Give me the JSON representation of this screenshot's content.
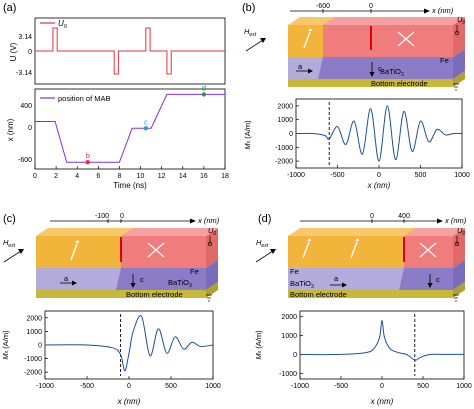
{
  "panels": {
    "a": {
      "label": "(a)",
      "top": {
        "legend": "U",
        "legend_sub": "0",
        "ylabel": "U (V)",
        "yticks": [
          "3.14",
          "0",
          "-3.14"
        ],
        "color": "#e53040"
      },
      "bottom": {
        "legend": "position of MAB",
        "ylabel": "x (nm)",
        "yticks": [
          "400",
          "0",
          "-600"
        ],
        "xlabel": "Time (ns)",
        "xticks": [
          "0",
          "2",
          "4",
          "6",
          "8",
          "10",
          "12",
          "14",
          "16",
          "18"
        ],
        "color": "#8a2be2",
        "markers": [
          {
            "label": "b",
            "color": "#e53040"
          },
          {
            "label": "c",
            "color": "#1fa3d8"
          },
          {
            "label": "d",
            "color": "#2e9e3a"
          }
        ]
      }
    },
    "b": {
      "label": "(b)",
      "axis_label": "x (nm)",
      "axis_ticks": [
        "-600",
        "0"
      ],
      "hext": "H",
      "hext_sub": "ext",
      "u0": "U",
      "u0_sub": "0",
      "fe": "Fe",
      "bto": "BaTiO",
      "bto_sub": "3",
      "electrode": "Bottom electrode",
      "a": "a",
      "c": "c",
      "ylabel": "M",
      "ylabel_sub": "x",
      "yunit": "(A/m)",
      "yticks": [
        "2000",
        "1000",
        "0",
        "-1000",
        "-2000"
      ],
      "xticks": [
        "-1000",
        "-500",
        "0",
        "500",
        "1000"
      ],
      "xlabel": "x (nm)"
    },
    "c": {
      "label": "(c)",
      "axis_label": "x (nm)",
      "axis_ticks": [
        "-100",
        "0"
      ],
      "hext": "H",
      "hext_sub": "ext",
      "u0": "U",
      "u0_sub": "0",
      "fe": "Fe",
      "bto": "BaTiO",
      "bto_sub": "3",
      "electrode": "Bottom electrode",
      "a": "a",
      "c": "c",
      "ylabel": "M",
      "ylabel_sub": "x",
      "yunit": "(A/m)",
      "yticks": [
        "2000",
        "1000",
        "0",
        "-1000",
        "-2000"
      ],
      "xticks": [
        "-1000",
        "-500",
        "0",
        "500",
        "1000"
      ],
      "xlabel": "x (nm)"
    },
    "d": {
      "label": "(d)",
      "axis_label": "x (nm)",
      "axis_ticks": [
        "0",
        "400"
      ],
      "hext": "H",
      "hext_sub": "ext",
      "u0": "U",
      "u0_sub": "0",
      "fe": "Fe",
      "bto": "BaTiO",
      "bto_sub": "3",
      "electrode": "Bottom electrode",
      "a": "a",
      "c": "c",
      "ylabel": "M",
      "ylabel_sub": "x",
      "yunit": "(A/m)",
      "yticks": [
        "2000",
        "1000",
        "0",
        "-1000"
      ],
      "xticks": [
        "-1000",
        "-500",
        "0",
        "500",
        "1000"
      ],
      "xlabel": "x (nm)"
    }
  },
  "colors": {
    "orange": "#f2b43a",
    "pink": "#f07c7c",
    "lavender": "#b3abdc",
    "purple": "#8b7cc8",
    "electrode": "#c8b83a",
    "curve": "#1f4e9c",
    "red": "#e53040"
  },
  "chart_data": [
    {
      "type": "line",
      "panel": "a-top",
      "ylabel": "U (V)",
      "series": [
        {
          "name": "U0",
          "x": [
            0,
            1.7,
            1.7,
            2.1,
            2.1,
            7.5,
            7.5,
            7.9,
            7.9,
            10.5,
            10.5,
            10.9,
            10.9,
            12.5,
            12.5,
            12.9,
            12.9,
            18
          ],
          "y": [
            0,
            0,
            3.14,
            3.14,
            0,
            0,
            -3.14,
            -3.14,
            0,
            0,
            3.14,
            3.14,
            0,
            0,
            -3.14,
            -3.14,
            0,
            0
          ]
        }
      ],
      "xlim": [
        0,
        18
      ],
      "ylim": [
        -4.5,
        4.5
      ]
    },
    {
      "type": "line",
      "panel": "a-bottom",
      "xlabel": "Time (ns)",
      "ylabel": "x (nm)",
      "series": [
        {
          "name": "position of MAB",
          "x": [
            0,
            1.9,
            3,
            8,
            9.2,
            11,
            12.5,
            13.2,
            18
          ],
          "y": [
            0,
            0,
            -600,
            -600,
            -100,
            -100,
            400,
            400,
            400
          ]
        }
      ],
      "points": [
        {
          "label": "b",
          "x": 5,
          "y": -600
        },
        {
          "label": "c",
          "x": 10.5,
          "y": -100
        },
        {
          "label": "d",
          "x": 16,
          "y": 400
        }
      ],
      "xlim": [
        0,
        18
      ],
      "ylim": [
        -700,
        480
      ]
    },
    {
      "type": "line",
      "panel": "b",
      "xlabel": "x (nm)",
      "ylabel": "Mx (A/m)",
      "series": [
        {
          "name": "Mx",
          "x": [
            -1000,
            -800,
            -650,
            -600,
            -500,
            -400,
            -300,
            -200,
            -100,
            0,
            100,
            200,
            300,
            400,
            500,
            600,
            700,
            800,
            900,
            1000
          ],
          "y": [
            0,
            0,
            -150,
            -400,
            500,
            -800,
            900,
            -1500,
            1800,
            -2000,
            2000,
            -1900,
            1600,
            -1300,
            900,
            -600,
            300,
            -100,
            0,
            0
          ]
        }
      ],
      "marker_x": -600,
      "xlim": [
        -1000,
        1000
      ],
      "ylim": [
        -2500,
        2500
      ]
    },
    {
      "type": "line",
      "panel": "c",
      "xlabel": "x (nm)",
      "ylabel": "Mx (A/m)",
      "series": [
        {
          "name": "Mx",
          "x": [
            -1000,
            -500,
            -200,
            -100,
            -50,
            0,
            50,
            150,
            250,
            350,
            450,
            550,
            650,
            750,
            850,
            1000
          ],
          "y": [
            0,
            0,
            -200,
            -700,
            -1900,
            -600,
            1000,
            2100,
            -800,
            1200,
            -600,
            600,
            -300,
            200,
            -100,
            0
          ]
        }
      ],
      "marker_x": -100,
      "xlim": [
        -1000,
        1000
      ],
      "ylim": [
        -2500,
        2500
      ]
    },
    {
      "type": "line",
      "panel": "d",
      "xlabel": "x (nm)",
      "ylabel": "Mx (A/m)",
      "series": [
        {
          "name": "Mx",
          "x": [
            -1000,
            -500,
            -200,
            -100,
            -30,
            0,
            30,
            100,
            200,
            300,
            400,
            450,
            500,
            600,
            800,
            1000
          ],
          "y": [
            0,
            0,
            100,
            300,
            900,
            1800,
            900,
            300,
            100,
            0,
            -300,
            -200,
            -100,
            0,
            0,
            0
          ]
        }
      ],
      "marker_x": 400,
      "xlim": [
        -1000,
        1000
      ],
      "ylim": [
        -1300,
        2300
      ]
    }
  ]
}
